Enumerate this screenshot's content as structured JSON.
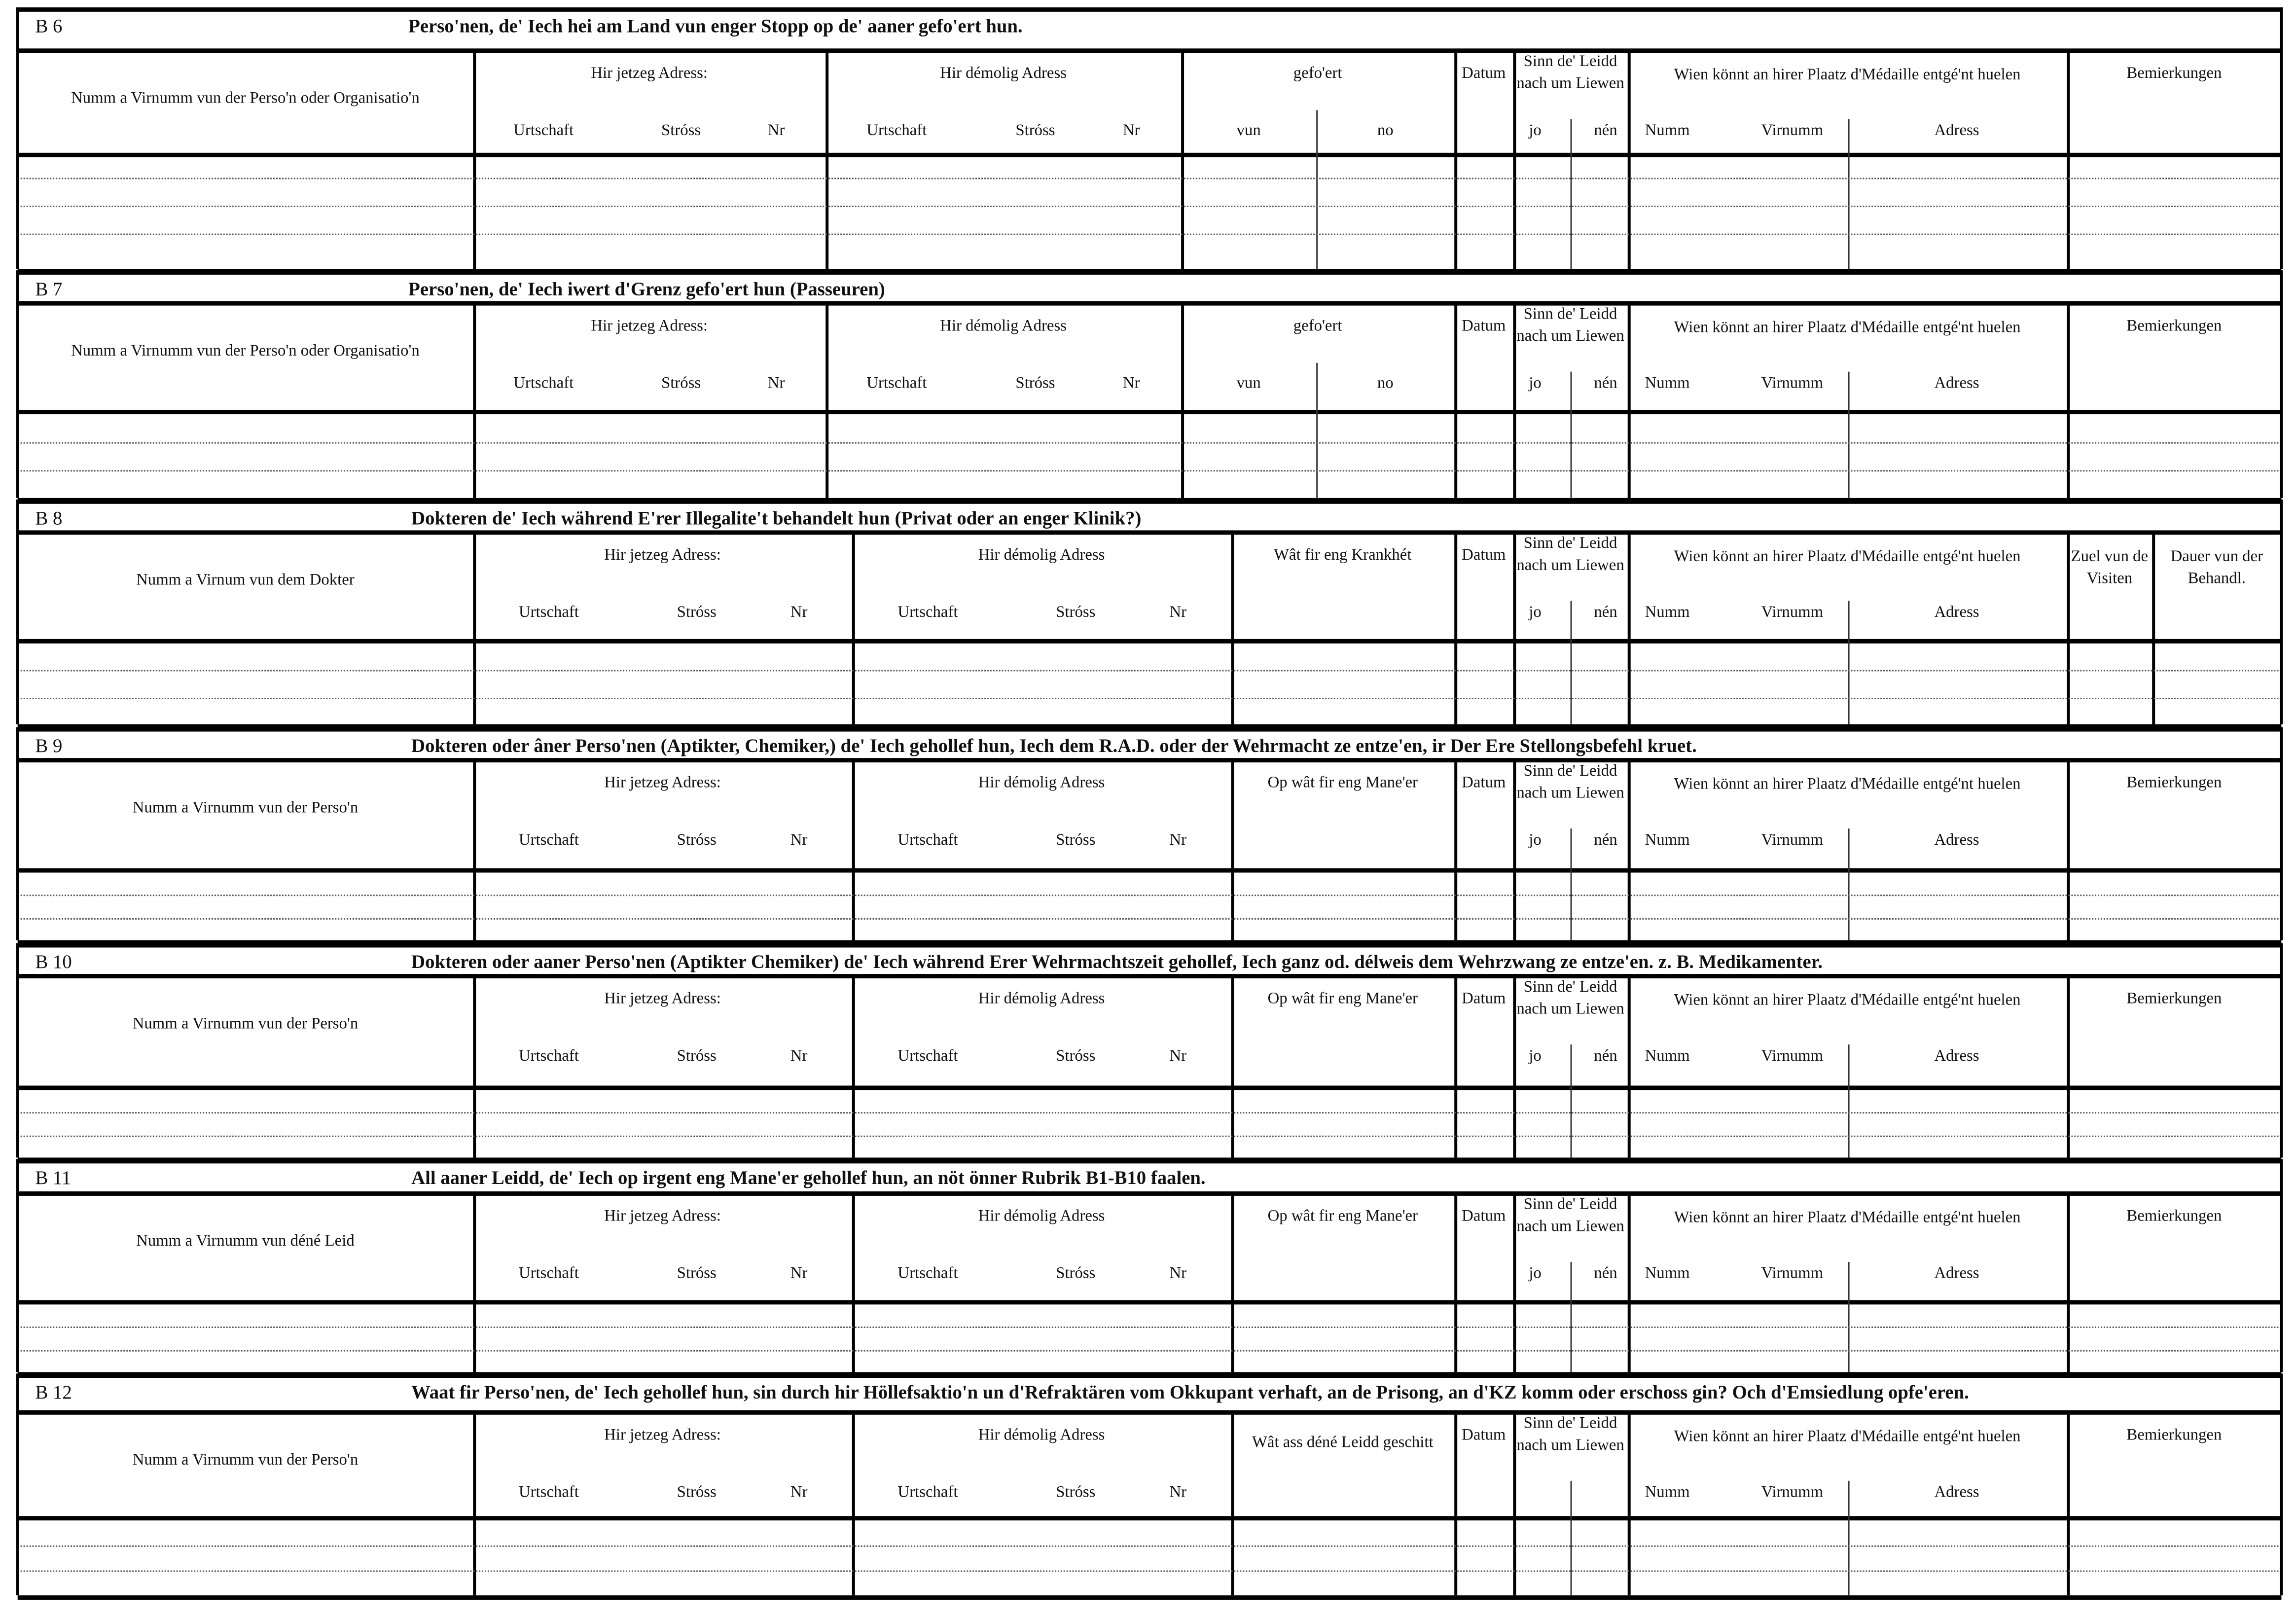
{
  "common": {
    "current_address": "Hir jetzeg Adress:",
    "former_address": "Hir démolig Adress",
    "address_sub": [
      "Urtschaft",
      "Stróss",
      "Nr"
    ],
    "datum": "Datum",
    "alive": "Sinn de' Leidd nach um Liewen",
    "alive_sub": [
      "jo",
      "nén"
    ],
    "medal": "Wien könnt an hirer Plaatz d'Médaille entgé'nt huelen",
    "medal_sub": [
      "Numm",
      "Virnumm",
      "Adress"
    ]
  },
  "sections": [
    {
      "id": "B 6",
      "title": "Perso'nen, de' Iech hei am Land vun enger Stopp op de' aaner gefo'ert hun.",
      "name_col": "Numm a Virnumm vun der Perso'n oder Organisatio'n",
      "col4": "gefo'ert",
      "col4_sub": [
        "vun",
        "no"
      ],
      "remarks": [
        "Bemierkungen"
      ]
    },
    {
      "id": "B 7",
      "title": "Perso'nen, de' Iech iwert d'Grenz gefo'ert hun (Passeuren)",
      "name_col": "Numm a Virnumm vun der Perso'n oder Organisatio'n",
      "col4": "gefo'ert",
      "col4_sub": [
        "vun",
        "no"
      ],
      "remarks": [
        "Bemierkungen"
      ]
    },
    {
      "id": "B 8",
      "title": "Dokteren de' Iech während E'rer Illegalite't behandelt hun (Privat oder an enger Klinik?)",
      "name_col": "Numm a Virnum vun dem Dokter",
      "col4": "Wât fir eng Krankhét",
      "col4_sub": [],
      "remarks": [
        "Zuel vun de Visiten",
        "Dauer vun der Behandl."
      ]
    },
    {
      "id": "B 9",
      "title": "Dokteren oder âner Perso'nen (Aptikter, Chemiker,) de' Iech gehollef hun, Iech dem R.A.D. oder der Wehrmacht ze entze'en, ir Der Ere Stellongsbefehl kruet.",
      "name_col": "Numm a Virnumm vun der Perso'n",
      "col4": "Op wât fir eng Mane'er",
      "col4_sub": [],
      "remarks": [
        "Bemierkungen"
      ]
    },
    {
      "id": "B 10",
      "title": "Dokteren oder aaner Perso'nen (Aptikter Chemiker) de' Iech während Erer Wehrmachtszeit gehollef, Iech ganz od. délweis dem Wehrzwang ze entze'en. z. B. Medikamenter.",
      "name_col": "Numm a Virnumm vun der Perso'n",
      "col4": "Op wât fir eng Mane'er",
      "col4_sub": [],
      "remarks": [
        "Bemierkungen"
      ]
    },
    {
      "id": "B 11",
      "title": "All aaner Leidd, de' Iech op irgent eng Mane'er gehollef hun, an nöt önner Rubrik B1-B10 faalen.",
      "name_col": "Numm a Virnumm vun déné Leid",
      "col4": "Op wât fir eng Mane'er",
      "col4_sub": [],
      "remarks": [
        "Bemierkungen"
      ]
    },
    {
      "id": "B 12",
      "title": "Waat fir Perso'nen, de' Iech gehollef hun, sin durch hir Höllefsaktio'n un d'Refraktären vom Okkupant verhaft, an de Prisong, an d'KZ komm oder erschoss gin? Och d'Emsiedlung opfe'eren.",
      "name_col": "Numm a Virnumm vun der Perso'n",
      "col4": "Wât ass déné Leidd geschitt",
      "col4_sub": [],
      "remarks": [
        "Bemierkungen"
      ],
      "no_alive_sub": true
    }
  ]
}
